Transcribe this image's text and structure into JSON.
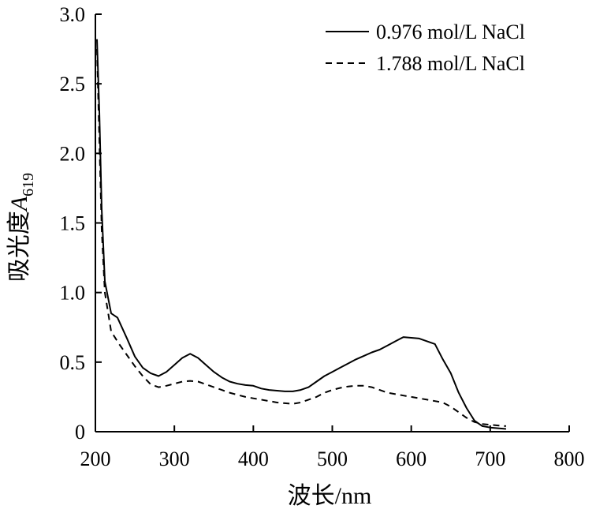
{
  "chart_data": {
    "type": "line",
    "title": "",
    "xlabel": "波长/nm",
    "ylabel_main": "吸光度",
    "ylabel_var": "A",
    "ylabel_sub": "619",
    "xlim": [
      200,
      800
    ],
    "ylim": [
      0,
      3.0
    ],
    "xticks": [
      200,
      300,
      400,
      500,
      600,
      700,
      800
    ],
    "yticks": [
      0,
      0.5,
      1.0,
      1.5,
      2.0,
      2.5,
      3.0
    ],
    "xtick_labels": [
      "200",
      "300",
      "400",
      "500",
      "600",
      "700",
      "800"
    ],
    "ytick_labels": [
      "0",
      "0.5",
      "1.0",
      "1.5",
      "2.0",
      "2.5",
      "3.0"
    ],
    "grid": false,
    "legend_position": "top-right",
    "series": [
      {
        "name": "0.976 mol/L NaCl",
        "style": "solid",
        "points": [
          [
            202,
            2.82
          ],
          [
            205,
            2.3
          ],
          [
            208,
            1.6
          ],
          [
            212,
            1.08
          ],
          [
            220,
            0.85
          ],
          [
            228,
            0.82
          ],
          [
            240,
            0.67
          ],
          [
            250,
            0.54
          ],
          [
            260,
            0.46
          ],
          [
            270,
            0.42
          ],
          [
            280,
            0.4
          ],
          [
            290,
            0.43
          ],
          [
            300,
            0.48
          ],
          [
            310,
            0.53
          ],
          [
            320,
            0.56
          ],
          [
            330,
            0.53
          ],
          [
            340,
            0.48
          ],
          [
            350,
            0.43
          ],
          [
            360,
            0.39
          ],
          [
            370,
            0.36
          ],
          [
            380,
            0.345
          ],
          [
            390,
            0.335
          ],
          [
            400,
            0.33
          ],
          [
            410,
            0.31
          ],
          [
            420,
            0.3
          ],
          [
            430,
            0.295
          ],
          [
            440,
            0.29
          ],
          [
            450,
            0.29
          ],
          [
            460,
            0.3
          ],
          [
            470,
            0.32
          ],
          [
            480,
            0.36
          ],
          [
            490,
            0.4
          ],
          [
            500,
            0.43
          ],
          [
            510,
            0.46
          ],
          [
            520,
            0.49
          ],
          [
            530,
            0.52
          ],
          [
            540,
            0.545
          ],
          [
            550,
            0.57
          ],
          [
            560,
            0.59
          ],
          [
            570,
            0.62
          ],
          [
            580,
            0.65
          ],
          [
            590,
            0.68
          ],
          [
            600,
            0.675
          ],
          [
            610,
            0.67
          ],
          [
            620,
            0.65
          ],
          [
            630,
            0.63
          ],
          [
            640,
            0.52
          ],
          [
            650,
            0.42
          ],
          [
            660,
            0.28
          ],
          [
            670,
            0.17
          ],
          [
            680,
            0.08
          ],
          [
            690,
            0.04
          ],
          [
            700,
            0.03
          ],
          [
            710,
            0.025
          ],
          [
            720,
            0.02
          ]
        ]
      },
      {
        "name": "1.788 mol/L NaCl",
        "style": "dashed",
        "points": [
          [
            202,
            2.75
          ],
          [
            205,
            2.1
          ],
          [
            208,
            1.45
          ],
          [
            212,
            1.0
          ],
          [
            220,
            0.72
          ],
          [
            230,
            0.63
          ],
          [
            240,
            0.55
          ],
          [
            250,
            0.47
          ],
          [
            260,
            0.4
          ],
          [
            270,
            0.34
          ],
          [
            280,
            0.32
          ],
          [
            290,
            0.33
          ],
          [
            300,
            0.345
          ],
          [
            310,
            0.36
          ],
          [
            320,
            0.365
          ],
          [
            330,
            0.36
          ],
          [
            340,
            0.34
          ],
          [
            350,
            0.32
          ],
          [
            360,
            0.3
          ],
          [
            370,
            0.28
          ],
          [
            380,
            0.265
          ],
          [
            390,
            0.25
          ],
          [
            400,
            0.24
          ],
          [
            410,
            0.23
          ],
          [
            420,
            0.22
          ],
          [
            430,
            0.21
          ],
          [
            440,
            0.205
          ],
          [
            450,
            0.2
          ],
          [
            460,
            0.21
          ],
          [
            470,
            0.23
          ],
          [
            480,
            0.25
          ],
          [
            490,
            0.28
          ],
          [
            500,
            0.3
          ],
          [
            510,
            0.315
          ],
          [
            520,
            0.325
          ],
          [
            530,
            0.33
          ],
          [
            540,
            0.33
          ],
          [
            550,
            0.32
          ],
          [
            560,
            0.3
          ],
          [
            570,
            0.28
          ],
          [
            580,
            0.27
          ],
          [
            590,
            0.26
          ],
          [
            600,
            0.25
          ],
          [
            610,
            0.24
          ],
          [
            620,
            0.23
          ],
          [
            630,
            0.22
          ],
          [
            640,
            0.21
          ],
          [
            650,
            0.18
          ],
          [
            660,
            0.14
          ],
          [
            670,
            0.1
          ],
          [
            680,
            0.07
          ],
          [
            690,
            0.055
          ],
          [
            700,
            0.05
          ],
          [
            710,
            0.045
          ],
          [
            720,
            0.04
          ]
        ]
      }
    ]
  }
}
